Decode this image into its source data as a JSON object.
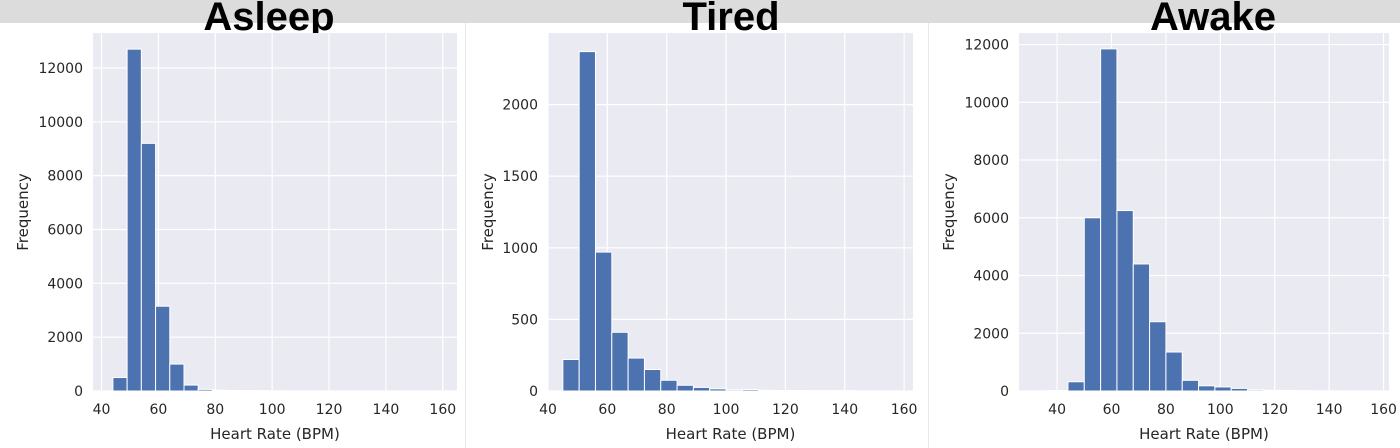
{
  "chart_data": [
    {
      "type": "bar",
      "title": "Asleep",
      "xlabel": "Heart Rate (BPM)",
      "ylabel": "Frequency",
      "xlim": [
        37,
        165
      ],
      "ylim": [
        0,
        13300
      ],
      "xticks": [
        40,
        60,
        80,
        100,
        120,
        140,
        160
      ],
      "yticks": [
        0,
        2000,
        4000,
        6000,
        8000,
        10000,
        12000
      ],
      "grid": true,
      "bar_color": "#4c72b0",
      "bins": [
        {
          "x0": 44,
          "x1": 49,
          "value": 500
        },
        {
          "x0": 49,
          "x1": 54,
          "value": 12700
        },
        {
          "x0": 54,
          "x1": 59,
          "value": 9200
        },
        {
          "x0": 59,
          "x1": 64,
          "value": 3150
        },
        {
          "x0": 64,
          "x1": 69,
          "value": 1000
        },
        {
          "x0": 69,
          "x1": 74,
          "value": 220
        },
        {
          "x0": 74,
          "x1": 79,
          "value": 60
        },
        {
          "x0": 79,
          "x1": 84,
          "value": 30
        },
        {
          "x0": 84,
          "x1": 89,
          "value": 20
        },
        {
          "x0": 89,
          "x1": 94,
          "value": 15
        },
        {
          "x0": 94,
          "x1": 99,
          "value": 10
        },
        {
          "x0": 99,
          "x1": 104,
          "value": 8
        },
        {
          "x0": 104,
          "x1": 109,
          "value": 5
        },
        {
          "x0": 109,
          "x1": 114,
          "value": 5
        },
        {
          "x0": 114,
          "x1": 119,
          "value": 3
        },
        {
          "x0": 119,
          "x1": 124,
          "value": 3
        },
        {
          "x0": 124,
          "x1": 129,
          "value": 3
        },
        {
          "x0": 129,
          "x1": 134,
          "value": 2
        },
        {
          "x0": 134,
          "x1": 139,
          "value": 2
        },
        {
          "x0": 139,
          "x1": 144,
          "value": 2
        },
        {
          "x0": 144,
          "x1": 149,
          "value": 2
        },
        {
          "x0": 149,
          "x1": 154,
          "value": 1
        },
        {
          "x0": 154,
          "x1": 159,
          "value": 1
        }
      ]
    },
    {
      "type": "bar",
      "title": "Tired",
      "xlabel": "Heart Rate (BPM)",
      "ylabel": "Frequency",
      "xlim": [
        40,
        163
      ],
      "ylim": [
        0,
        2500
      ],
      "xticks": [
        40,
        60,
        80,
        100,
        120,
        140,
        160
      ],
      "yticks": [
        0,
        500,
        1000,
        1500,
        2000
      ],
      "grid": true,
      "bar_color": "#4c72b0",
      "bins": [
        {
          "x0": 45,
          "x1": 50.5,
          "value": 220
        },
        {
          "x0": 50.5,
          "x1": 56,
          "value": 2370
        },
        {
          "x0": 56,
          "x1": 61.5,
          "value": 970
        },
        {
          "x0": 61.5,
          "x1": 67,
          "value": 410
        },
        {
          "x0": 67,
          "x1": 72.5,
          "value": 230
        },
        {
          "x0": 72.5,
          "x1": 78,
          "value": 150
        },
        {
          "x0": 78,
          "x1": 83.5,
          "value": 75
        },
        {
          "x0": 83.5,
          "x1": 89,
          "value": 40
        },
        {
          "x0": 89,
          "x1": 94.5,
          "value": 25
        },
        {
          "x0": 94.5,
          "x1": 100,
          "value": 15
        },
        {
          "x0": 100,
          "x1": 105.5,
          "value": 8
        },
        {
          "x0": 105.5,
          "x1": 111,
          "value": 10
        },
        {
          "x0": 111,
          "x1": 116.5,
          "value": 5
        },
        {
          "x0": 116.5,
          "x1": 122,
          "value": 3
        },
        {
          "x0": 122,
          "x1": 127.5,
          "value": 3
        },
        {
          "x0": 127.5,
          "x1": 133,
          "value": 2
        },
        {
          "x0": 133,
          "x1": 138.5,
          "value": 2
        },
        {
          "x0": 138.5,
          "x1": 144,
          "value": 2
        },
        {
          "x0": 144,
          "x1": 149.5,
          "value": 1
        },
        {
          "x0": 149.5,
          "x1": 155,
          "value": 1
        }
      ]
    },
    {
      "type": "bar",
      "title": "Awake",
      "xlabel": "Heart Rate (BPM)",
      "ylabel": "Frequency",
      "xlim": [
        26,
        162
      ],
      "ylim": [
        0,
        12400
      ],
      "xticks": [
        40,
        60,
        80,
        100,
        120,
        140,
        160
      ],
      "yticks": [
        0,
        2000,
        4000,
        6000,
        8000,
        10000,
        12000
      ],
      "grid": true,
      "bar_color": "#4c72b0",
      "bins": [
        {
          "x0": 32,
          "x1": 38,
          "value": 8
        },
        {
          "x0": 38,
          "x1": 44,
          "value": 15
        },
        {
          "x0": 44,
          "x1": 50,
          "value": 320
        },
        {
          "x0": 50,
          "x1": 56,
          "value": 6000
        },
        {
          "x0": 56,
          "x1": 62,
          "value": 11850
        },
        {
          "x0": 62,
          "x1": 68,
          "value": 6250
        },
        {
          "x0": 68,
          "x1": 74,
          "value": 4400
        },
        {
          "x0": 74,
          "x1": 80,
          "value": 2400
        },
        {
          "x0": 80,
          "x1": 86,
          "value": 1350
        },
        {
          "x0": 86,
          "x1": 92,
          "value": 370
        },
        {
          "x0": 92,
          "x1": 98,
          "value": 180
        },
        {
          "x0": 98,
          "x1": 104,
          "value": 140
        },
        {
          "x0": 104,
          "x1": 110,
          "value": 90
        },
        {
          "x0": 110,
          "x1": 116,
          "value": 40
        },
        {
          "x0": 116,
          "x1": 122,
          "value": 25
        },
        {
          "x0": 122,
          "x1": 128,
          "value": 20
        },
        {
          "x0": 128,
          "x1": 134,
          "value": 10
        },
        {
          "x0": 134,
          "x1": 140,
          "value": 8
        },
        {
          "x0": 140,
          "x1": 146,
          "value": 5
        },
        {
          "x0": 146,
          "x1": 152,
          "value": 3
        },
        {
          "x0": 152,
          "x1": 158,
          "value": 2
        }
      ]
    }
  ]
}
